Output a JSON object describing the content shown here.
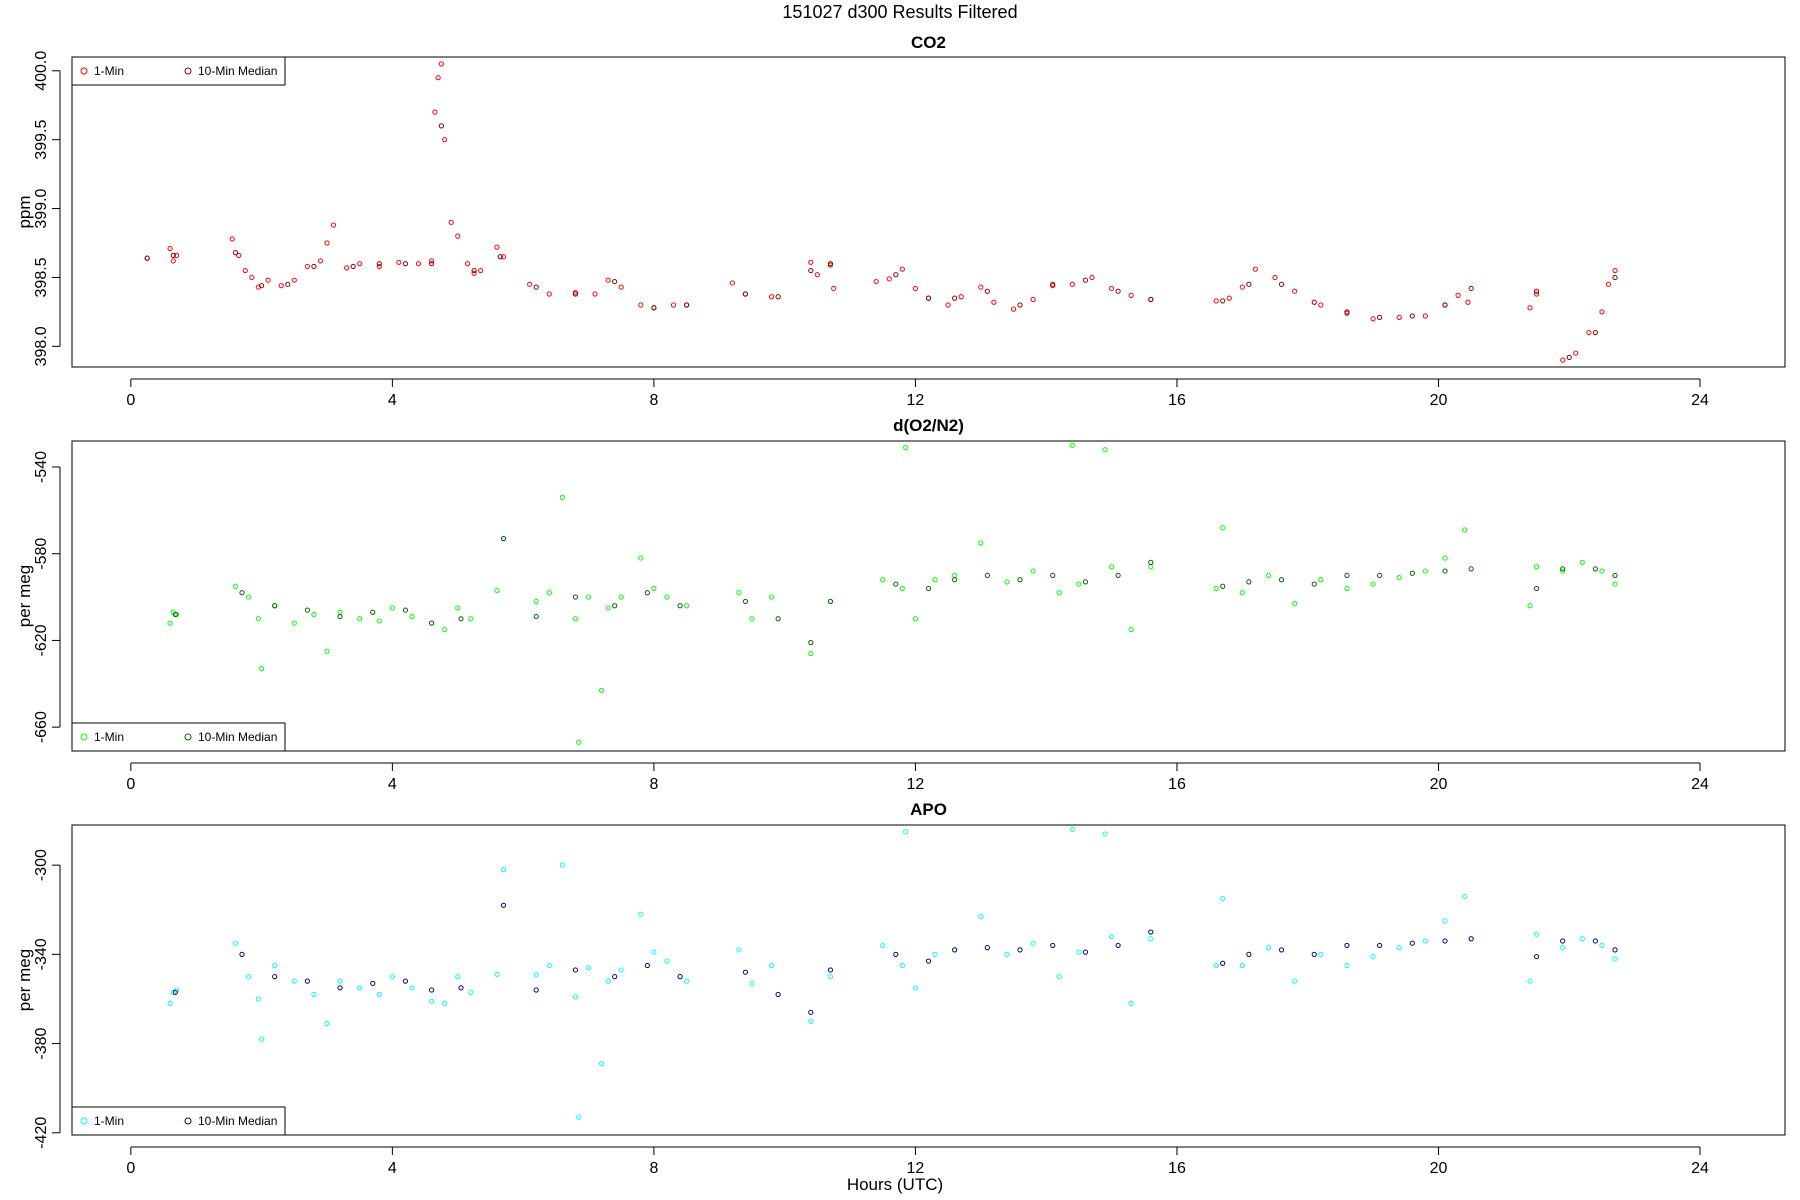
{
  "figure": {
    "title": "151027   d300   Results Filtered",
    "xlabel": "Hours (UTC)"
  },
  "chart_data": [
    {
      "type": "scatter",
      "title": "CO2",
      "ylabel": "ppm",
      "xlim": [
        -0.9,
        25.3
      ],
      "ylim": [
        397.85,
        400.1
      ],
      "xticks": [
        0,
        4,
        8,
        12,
        16,
        20,
        24
      ],
      "yticks": [
        398.0,
        398.5,
        399.0,
        399.5,
        400.0
      ],
      "ytick_labels": [
        "398.0",
        "398.5",
        "399.0",
        "399.5",
        "400.0"
      ],
      "legend": {
        "position": "top-left",
        "entries": [
          "1-Min",
          "10-Min Median"
        ]
      },
      "series": [
        {
          "name": "1-Min",
          "color": "#ff0000",
          "x": [
            0.25,
            0.6,
            0.65,
            0.7,
            1.55,
            1.65,
            1.75,
            1.85,
            1.95,
            2.1,
            2.3,
            2.5,
            2.7,
            2.9,
            3.0,
            3.1,
            3.3,
            3.5,
            3.8,
            4.1,
            4.4,
            4.6,
            4.65,
            4.7,
            4.75,
            4.8,
            4.9,
            5.0,
            5.15,
            5.25,
            5.35,
            5.6,
            5.7,
            6.1,
            6.4,
            6.8,
            7.1,
            7.3,
            7.5,
            7.8,
            8.0,
            8.3,
            8.5,
            9.2,
            9.4,
            9.8,
            10.4,
            10.5,
            10.7,
            10.75,
            11.4,
            11.6,
            11.8,
            12.0,
            12.2,
            12.5,
            12.7,
            13.0,
            13.2,
            13.5,
            13.8,
            14.1,
            14.4,
            14.7,
            15.0,
            15.3,
            15.6,
            16.6,
            16.8,
            17.0,
            17.2,
            17.5,
            17.8,
            18.2,
            18.6,
            19.0,
            19.4,
            19.8,
            20.1,
            20.3,
            20.45,
            21.4,
            21.5,
            21.9,
            22.1,
            22.3,
            22.5,
            22.6,
            22.7
          ],
          "y": [
            398.64,
            398.71,
            398.62,
            398.66,
            398.78,
            398.66,
            398.55,
            398.5,
            398.43,
            398.48,
            398.44,
            398.48,
            398.58,
            398.62,
            398.75,
            398.88,
            398.57,
            398.6,
            398.58,
            398.61,
            398.6,
            398.62,
            399.7,
            399.95,
            400.05,
            399.5,
            398.9,
            398.8,
            398.6,
            398.53,
            398.55,
            398.72,
            398.65,
            398.45,
            398.38,
            398.39,
            398.38,
            398.48,
            398.43,
            398.3,
            398.28,
            398.3,
            398.3,
            398.46,
            398.38,
            398.36,
            398.61,
            398.52,
            398.59,
            398.42,
            398.47,
            398.49,
            398.56,
            398.42,
            398.35,
            398.3,
            398.36,
            398.43,
            398.32,
            398.27,
            398.34,
            398.44,
            398.45,
            398.5,
            398.42,
            398.37,
            398.34,
            398.33,
            398.35,
            398.43,
            398.56,
            398.5,
            398.4,
            398.3,
            398.24,
            398.2,
            398.21,
            398.22,
            398.3,
            398.37,
            398.32,
            398.28,
            398.38,
            397.9,
            397.95,
            398.1,
            398.25,
            398.45,
            398.55
          ]
        },
        {
          "name": "10-Min Median",
          "color": "#8b0000",
          "x": [
            0.25,
            0.65,
            1.6,
            2.0,
            2.4,
            2.8,
            3.4,
            3.8,
            4.2,
            4.6,
            4.75,
            5.25,
            5.65,
            6.2,
            6.8,
            7.4,
            8.0,
            8.5,
            9.4,
            9.9,
            10.4,
            10.7,
            11.7,
            12.2,
            12.6,
            13.1,
            13.6,
            14.1,
            14.6,
            15.1,
            15.6,
            16.7,
            17.1,
            17.6,
            18.1,
            18.6,
            19.1,
            19.6,
            20.1,
            20.5,
            21.5,
            22.0,
            22.4,
            22.7
          ],
          "y": [
            398.64,
            398.66,
            398.68,
            398.44,
            398.45,
            398.58,
            398.58,
            398.6,
            398.6,
            398.6,
            399.6,
            398.55,
            398.65,
            398.43,
            398.38,
            398.47,
            398.28,
            398.3,
            398.38,
            398.36,
            398.55,
            398.6,
            398.52,
            398.35,
            398.35,
            398.4,
            398.3,
            398.45,
            398.48,
            398.4,
            398.34,
            398.33,
            398.45,
            398.45,
            398.32,
            398.25,
            398.21,
            398.22,
            398.3,
            398.42,
            398.4,
            397.92,
            398.1,
            398.5
          ]
        }
      ]
    },
    {
      "type": "scatter",
      "title": "d(O2/N2)",
      "ylabel": "per meg",
      "xlim": [
        -0.9,
        25.3
      ],
      "ylim": [
        -671,
        -528
      ],
      "xticks": [
        0,
        4,
        8,
        12,
        16,
        20,
        24
      ],
      "yticks": [
        -660,
        -620,
        -580,
        -540
      ],
      "ytick_labels": [
        "-660",
        "-620",
        "-580",
        "-540"
      ],
      "legend": {
        "position": "bottom-left",
        "entries": [
          "1-Min",
          "10-Min Median"
        ]
      },
      "series": [
        {
          "name": "1-Min",
          "color": "#00ff00",
          "x": [
            0.6,
            0.65,
            0.7,
            1.6,
            1.8,
            1.95,
            2.0,
            2.2,
            2.5,
            2.8,
            3.0,
            3.2,
            3.5,
            3.8,
            4.0,
            4.3,
            4.6,
            4.8,
            5.0,
            5.2,
            5.6,
            5.7,
            6.2,
            6.4,
            6.6,
            6.8,
            6.85,
            7.0,
            7.2,
            7.3,
            7.5,
            7.8,
            8.0,
            8.2,
            8.5,
            9.3,
            9.5,
            9.8,
            10.4,
            10.7,
            11.5,
            11.8,
            11.85,
            12.0,
            12.3,
            12.6,
            13.0,
            13.4,
            13.8,
            14.2,
            14.4,
            14.5,
            14.9,
            15.0,
            15.3,
            15.6,
            16.6,
            16.7,
            17.0,
            17.4,
            17.8,
            18.2,
            18.6,
            19.0,
            19.4,
            19.8,
            20.1,
            20.4,
            21.4,
            21.5,
            21.9,
            22.2,
            22.5,
            22.7
          ],
          "y": [
            -612,
            -607,
            -608,
            -595,
            -600,
            -610,
            -633,
            -604,
            -612,
            -608,
            -625,
            -607,
            -610,
            -611,
            -605,
            -609,
            -612,
            -615,
            -605,
            -610,
            -597,
            -573,
            -602,
            -598,
            -554,
            -610,
            -667,
            -600,
            -643,
            -605,
            -600,
            -582,
            -596,
            -600,
            -604,
            -598,
            -610,
            -600,
            -626,
            -602,
            -592,
            -596,
            -531,
            -610,
            -592,
            -590,
            -575,
            -593,
            -588,
            -598,
            -530,
            -594,
            -532,
            -586,
            -615,
            -586,
            -596,
            -568,
            -598,
            -590,
            -603,
            -592,
            -596,
            -594,
            -591,
            -588,
            -582,
            -569,
            -604,
            -586,
            -588,
            -584,
            -588,
            -594
          ]
        },
        {
          "name": "10-Min Median",
          "color": "#006400",
          "x": [
            0.68,
            1.7,
            2.2,
            2.7,
            3.2,
            3.7,
            4.2,
            4.6,
            5.05,
            5.7,
            6.2,
            6.8,
            7.4,
            7.9,
            8.4,
            9.4,
            9.9,
            10.4,
            10.7,
            11.7,
            12.2,
            12.6,
            13.1,
            13.6,
            14.1,
            14.6,
            15.1,
            15.6,
            16.7,
            17.1,
            17.6,
            18.1,
            18.6,
            19.1,
            19.6,
            20.1,
            20.5,
            21.5,
            21.9,
            22.4,
            22.7
          ],
          "y": [
            -608,
            -598,
            -604,
            -606,
            -609,
            -607,
            -606,
            -612,
            -610,
            -573,
            -609,
            -600,
            -604,
            -598,
            -604,
            -602,
            -610,
            -621,
            -602,
            -594,
            -596,
            -592,
            -590,
            -592,
            -590,
            -593,
            -590,
            -584,
            -595,
            -593,
            -592,
            -594,
            -590,
            -590,
            -589,
            -588,
            -587,
            -596,
            -587,
            -587,
            -590
          ]
        }
      ]
    },
    {
      "type": "scatter",
      "title": "APO",
      "ylabel": "per meg",
      "xlim": [
        -0.9,
        25.3
      ],
      "ylim": [
        -421,
        -282
      ],
      "xticks": [
        0,
        4,
        8,
        12,
        16,
        20,
        24
      ],
      "yticks": [
        -420,
        -380,
        -340,
        -300
      ],
      "ytick_labels": [
        "-420",
        "-380",
        "-340",
        "-300"
      ],
      "legend": {
        "position": "bottom-left",
        "entries": [
          "1-Min",
          "10-Min Median"
        ]
      },
      "series": [
        {
          "name": "1-Min",
          "color": "#00ffff",
          "x": [
            0.6,
            0.65,
            0.7,
            1.6,
            1.8,
            1.95,
            2.0,
            2.2,
            2.5,
            2.8,
            3.0,
            3.2,
            3.5,
            3.8,
            4.0,
            4.3,
            4.6,
            4.8,
            5.0,
            5.2,
            5.6,
            5.7,
            6.2,
            6.4,
            6.6,
            6.8,
            6.85,
            7.0,
            7.2,
            7.3,
            7.5,
            7.8,
            8.0,
            8.2,
            8.5,
            9.3,
            9.5,
            9.8,
            10.4,
            10.7,
            11.5,
            11.8,
            11.85,
            12.0,
            12.3,
            12.6,
            13.0,
            13.4,
            13.8,
            14.2,
            14.4,
            14.5,
            14.9,
            15.0,
            15.3,
            15.6,
            16.6,
            16.7,
            17.0,
            17.4,
            17.8,
            18.2,
            18.6,
            19.0,
            19.4,
            19.8,
            20.1,
            20.4,
            21.4,
            21.5,
            21.9,
            22.2,
            22.5,
            22.7
          ],
          "y": [
            -362,
            -357,
            -356,
            -335,
            -350,
            -360,
            -378,
            -345,
            -352,
            -358,
            -371,
            -352,
            -355,
            -358,
            -350,
            -355,
            -361,
            -362,
            -350,
            -357,
            -349,
            -302,
            -349,
            -345,
            -300,
            -359,
            -413,
            -346,
            -389,
            -352,
            -347,
            -322,
            -339,
            -343,
            -352,
            -338,
            -353,
            -345,
            -370,
            -350,
            -336,
            -345,
            -285,
            -355,
            -340,
            -338,
            -323,
            -340,
            -335,
            -350,
            -284,
            -339,
            -286,
            -332,
            -362,
            -333,
            -345,
            -315,
            -345,
            -337,
            -352,
            -340,
            -345,
            -341,
            -337,
            -334,
            -325,
            -314,
            -352,
            -331,
            -337,
            -333,
            -336,
            -342
          ]
        },
        {
          "name": "10-Min Median",
          "color": "#00008b",
          "x": [
            0.68,
            1.7,
            2.2,
            2.7,
            3.2,
            3.7,
            4.2,
            4.6,
            5.05,
            5.7,
            6.2,
            6.8,
            7.4,
            7.9,
            8.4,
            9.4,
            9.9,
            10.4,
            10.7,
            11.7,
            12.2,
            12.6,
            13.1,
            13.6,
            14.1,
            14.6,
            15.1,
            15.6,
            16.7,
            17.1,
            17.6,
            18.1,
            18.6,
            19.1,
            19.6,
            20.1,
            20.5,
            21.5,
            21.9,
            22.4,
            22.7
          ],
          "y": [
            -357,
            -340,
            -350,
            -352,
            -355,
            -353,
            -352,
            -356,
            -355,
            -318,
            -356,
            -347,
            -350,
            -345,
            -350,
            -348,
            -358,
            -366,
            -347,
            -340,
            -343,
            -338,
            -337,
            -338,
            -336,
            -339,
            -336,
            -330,
            -344,
            -340,
            -338,
            -340,
            -336,
            -336,
            -335,
            -334,
            -333,
            -341,
            -334,
            -334,
            -338
          ]
        }
      ]
    }
  ]
}
